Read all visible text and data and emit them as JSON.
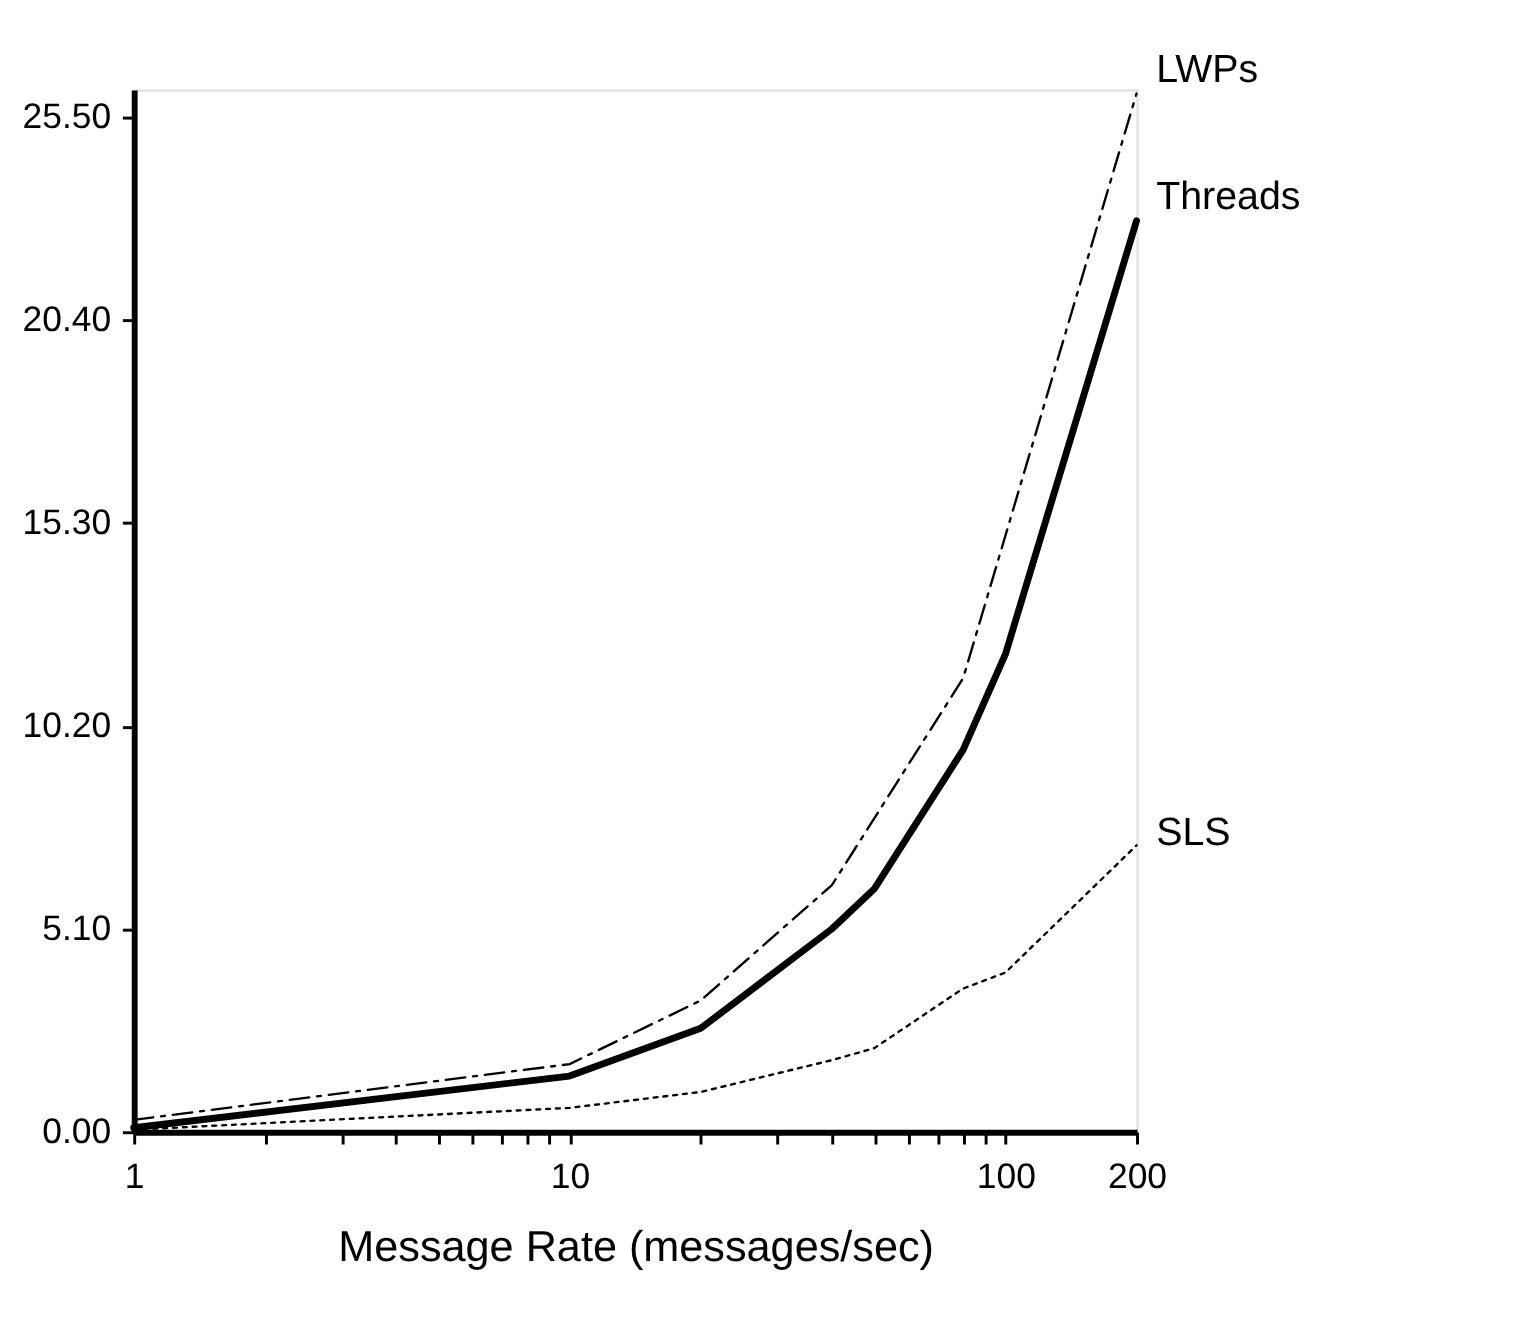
{
  "chart_data": {
    "type": "line",
    "xlabel": "Message Rate (messages/sec)",
    "log": "x",
    "grid": false,
    "marker": "none",
    "xlim": [
      1,
      200
    ],
    "xticks": [
      1,
      {
        "value": 2,
        "label": null
      },
      {
        "value": 3,
        "label": null
      },
      {
        "value": 4,
        "label": null
      },
      {
        "value": 5,
        "label": null
      },
      {
        "value": 6,
        "label": null
      },
      {
        "value": 7,
        "label": null
      },
      {
        "value": 8,
        "label": null
      },
      {
        "value": 9,
        "label": null
      },
      10,
      {
        "value": 20,
        "label": null
      },
      {
        "value": 30,
        "label": null
      },
      {
        "value": 40,
        "label": null
      },
      {
        "value": 50,
        "label": null
      },
      {
        "value": 60,
        "label": null
      },
      {
        "value": 70,
        "label": null
      },
      {
        "value": 80,
        "label": null
      },
      {
        "value": 90,
        "label": null
      },
      100,
      200
    ],
    "ylim": [
      0,
      26.2
    ],
    "yticks": [
      {
        "value": 0,
        "label": "0.00"
      },
      {
        "value": 5.1,
        "label": "5.10"
      },
      {
        "value": 10.2,
        "label": "10.20"
      },
      {
        "value": 15.3,
        "label": "15.30"
      },
      {
        "value": 20.4,
        "label": "20.40"
      },
      {
        "value": 25.5,
        "label": "25.50"
      }
    ],
    "series": [
      {
        "name": "LWPs",
        "color": "#000000",
        "line_style": "dashed",
        "x": [
          1,
          10,
          20,
          40,
          80,
          200
        ],
        "values": [
          0.3,
          1.7,
          3.3,
          6.2,
          11.4,
          26.1
        ]
      },
      {
        "name": "Threads",
        "color": "#000000",
        "line_style": "solid",
        "x": [
          1,
          10,
          20,
          40,
          50,
          80,
          100,
          200
        ],
        "values": [
          0.1,
          1.4,
          2.6,
          5.1,
          6.1,
          9.6,
          12.0,
          22.9
        ]
      },
      {
        "name": "SLS",
        "color": "#000000",
        "line_style": "dotted",
        "x": [
          1,
          10,
          20,
          40,
          50,
          80,
          100,
          200
        ],
        "values": [
          0.05,
          0.6,
          1.0,
          1.8,
          2.1,
          3.6,
          4.0,
          7.2
        ]
      }
    ]
  }
}
